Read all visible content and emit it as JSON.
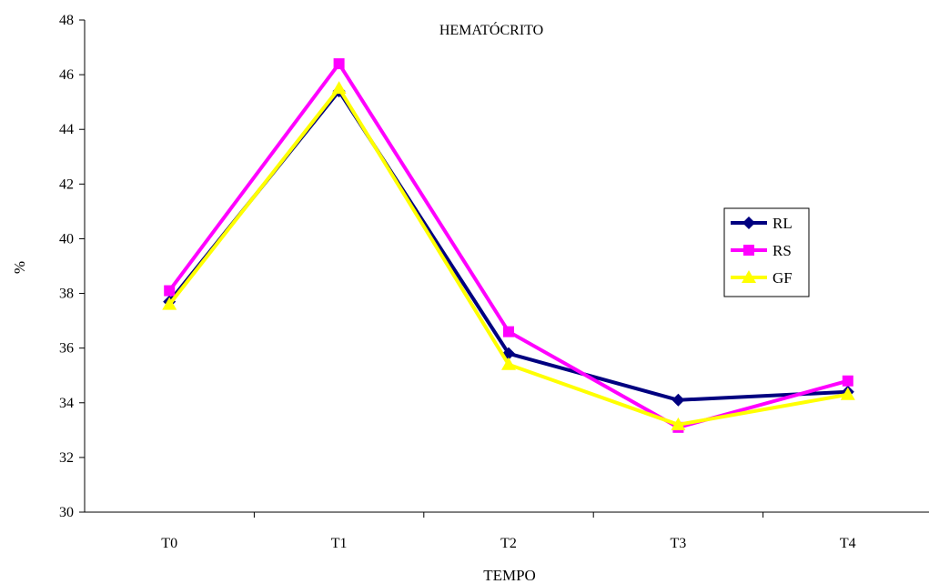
{
  "chart_data": {
    "type": "line",
    "title": "HEMATÓCRITO",
    "xlabel": "TEMPO",
    "ylabel": "%",
    "categories": [
      "T0",
      "T1",
      "T2",
      "T3",
      "T4"
    ],
    "ylim": [
      30,
      48
    ],
    "yticks": [
      30,
      32,
      34,
      36,
      38,
      40,
      42,
      44,
      46,
      48
    ],
    "grid": false,
    "legend_position": "right",
    "series": [
      {
        "name": "RL",
        "values": [
          37.7,
          45.4,
          35.8,
          34.1,
          34.4
        ],
        "color": "#000080",
        "marker": "diamond"
      },
      {
        "name": "RS",
        "values": [
          38.1,
          46.4,
          36.6,
          33.1,
          34.8
        ],
        "color": "#ff00ff",
        "marker": "square"
      },
      {
        "name": "GF",
        "values": [
          37.6,
          45.5,
          35.4,
          33.2,
          34.3
        ],
        "color": "#ffff00",
        "marker": "triangle"
      }
    ]
  }
}
